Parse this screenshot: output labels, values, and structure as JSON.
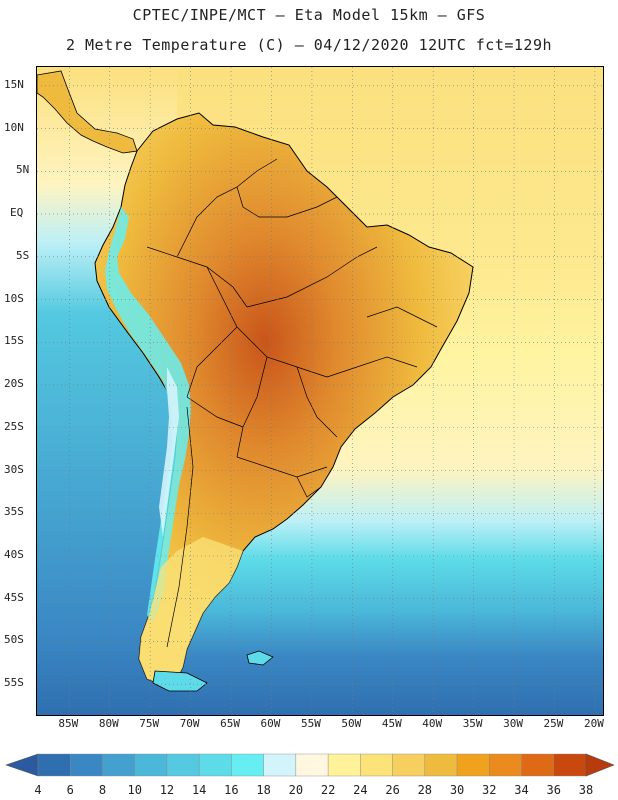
{
  "header": {
    "line1": "CPTEC/INPE/MCT —  Eta Model 15km — GFS",
    "line2": "2 Metre Temperature (C) — 04/12/2020 12UTC fct=129h"
  },
  "map": {
    "lat_labels": [
      "15N",
      "10N",
      "5N",
      "EQ",
      "5S",
      "10S",
      "15S",
      "20S",
      "25S",
      "30S",
      "35S",
      "40S",
      "45S",
      "50S",
      "55S"
    ],
    "lon_labels": [
      "85W",
      "80W",
      "75W",
      "70W",
      "65W",
      "60W",
      "55W",
      "50W",
      "45W",
      "40W",
      "35W",
      "30W",
      "25W",
      "20W"
    ],
    "lat_values": [
      15,
      10,
      5,
      0,
      -5,
      -10,
      -15,
      -20,
      -25,
      -30,
      -35,
      -40,
      -45,
      -50,
      -55
    ],
    "lon_values": [
      -85,
      -80,
      -75,
      -70,
      -65,
      -60,
      -55,
      -50,
      -45,
      -40,
      -35,
      -30,
      -25,
      -20
    ]
  },
  "legend": {
    "labels": [
      "4",
      "6",
      "8",
      "10",
      "12",
      "14",
      "16",
      "18",
      "20",
      "22",
      "24",
      "26",
      "28",
      "30",
      "32",
      "34",
      "36",
      "38"
    ],
    "values": [
      4,
      6,
      8,
      10,
      12,
      14,
      16,
      18,
      20,
      22,
      24,
      26,
      28,
      30,
      32,
      34,
      36,
      38
    ],
    "colors": [
      "#2f6fb0",
      "#3a87c4",
      "#44a1cf",
      "#4bb7d9",
      "#54c9e0",
      "#5ddbe8",
      "#66eef2",
      "#d4f4fb",
      "#fff7df",
      "#fff29a",
      "#fbe37a",
      "#f6cf5e",
      "#efbb3e",
      "#f0a21e",
      "#ea8a1f",
      "#de6a16",
      "#c9480e"
    ],
    "low_arrow_color": "#2c5aa0",
    "high_arrow_color": "#b83b0c"
  },
  "colors": {
    "ocean_warm": "#fbe07e",
    "ocean_mid": "#fff4a0",
    "ocean_cool": "#54c9e0",
    "ocean_cold": "#2f6fb0",
    "land_hot": "#e08a2e",
    "land_very_hot": "#c9551a",
    "andes": "#66eef2",
    "border": "#000000"
  }
}
